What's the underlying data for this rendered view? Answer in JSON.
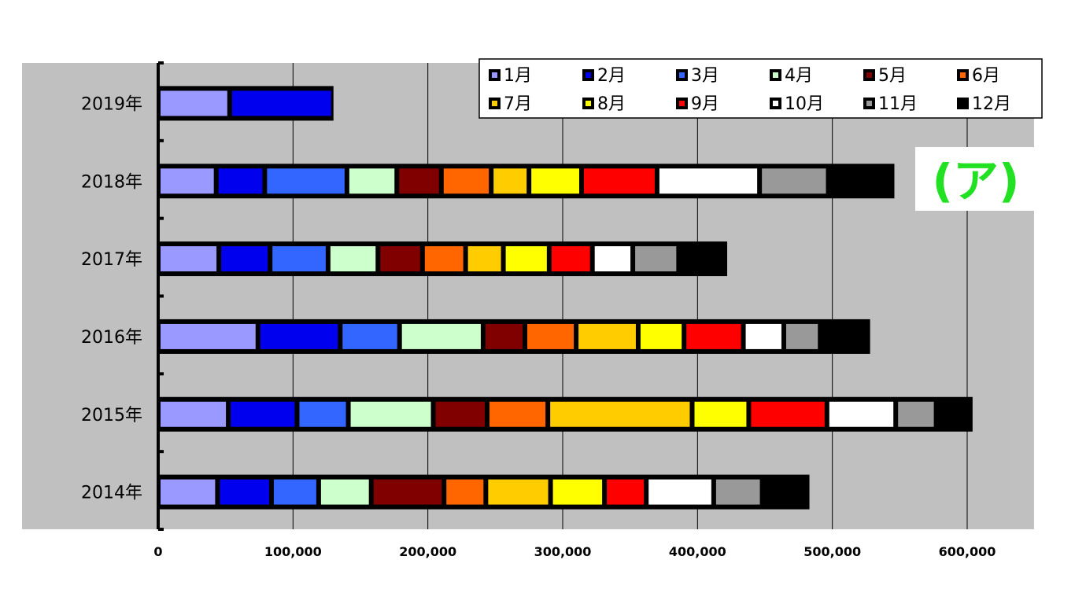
{
  "chart_data": {
    "type": "bar",
    "orientation": "horizontal",
    "stacked": true,
    "categories": [
      "2014年",
      "2015年",
      "2016年",
      "2017年",
      "2018年",
      "2019年"
    ],
    "series": [
      {
        "name": "1月",
        "color": "#9999ff",
        "values": [
          44000,
          52000,
          74000,
          45000,
          43000,
          53000
        ]
      },
      {
        "name": "2月",
        "color": "#0000ee",
        "values": [
          40000,
          51000,
          61000,
          38000,
          36000,
          77000
        ]
      },
      {
        "name": "3月",
        "color": "#3366ff",
        "values": [
          35000,
          38000,
          44000,
          43000,
          61000,
          0
        ]
      },
      {
        "name": "4月",
        "color": "#ccffcc",
        "values": [
          39000,
          63000,
          62000,
          37000,
          37000,
          0
        ]
      },
      {
        "name": "5月",
        "color": "#800000",
        "values": [
          54000,
          40000,
          31000,
          33000,
          33000,
          0
        ]
      },
      {
        "name": "6月",
        "color": "#ff6600",
        "values": [
          31000,
          45000,
          38000,
          32000,
          37000,
          0
        ]
      },
      {
        "name": "7月",
        "color": "#ffcc00",
        "values": [
          48000,
          107000,
          46000,
          28000,
          28000,
          0
        ]
      },
      {
        "name": "8月",
        "color": "#ffff00",
        "values": [
          40000,
          42000,
          34000,
          34000,
          39000,
          0
        ]
      },
      {
        "name": "9月",
        "color": "#ff0000",
        "values": [
          31000,
          58000,
          44000,
          32000,
          56000,
          0
        ]
      },
      {
        "name": "10月",
        "color": "#ffffff",
        "values": [
          50000,
          51000,
          30000,
          30000,
          76000,
          0
        ]
      },
      {
        "name": "11月",
        "color": "#999999",
        "values": [
          36000,
          30000,
          27000,
          34000,
          51000,
          0
        ]
      },
      {
        "name": "12月",
        "color": "#000000",
        "values": [
          35000,
          27000,
          37000,
          36000,
          49000,
          0
        ]
      }
    ],
    "xlim": [
      0,
      650000
    ],
    "x_ticks": [
      "0",
      "100,000",
      "200,000",
      "300,000",
      "400,000",
      "500,000",
      "600,000"
    ],
    "x_tick_values": [
      0,
      100000,
      200000,
      300000,
      400000,
      500000,
      600000
    ],
    "grid": true,
    "legend": {
      "position": "top-right",
      "columns": 6,
      "labels": [
        "1月",
        "2月",
        "3月",
        "4月",
        "5月",
        "6月",
        "7月",
        "8月",
        "9月",
        "10月",
        "11月",
        "12月"
      ]
    },
    "annotation": "(ア)",
    "plot_background": "#c0c0c0"
  }
}
